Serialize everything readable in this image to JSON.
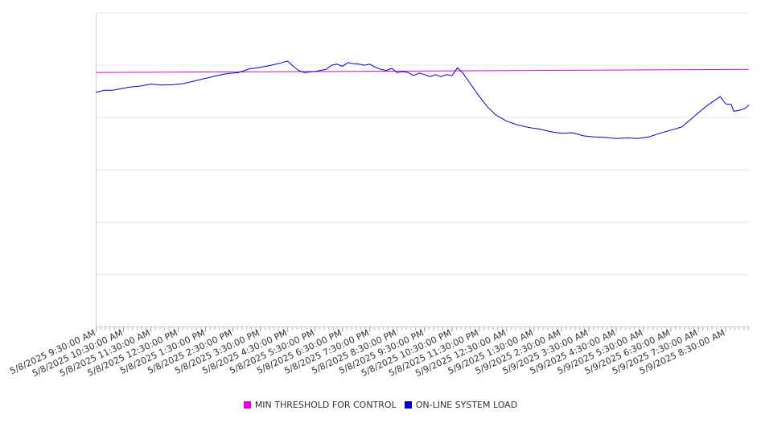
{
  "chart_data": {
    "type": "line",
    "title": "",
    "xlabel": "",
    "ylabel": "",
    "ylim": [
      0,
      6
    ],
    "grid": true,
    "legend_position": "bottom",
    "x_tick_labels": [
      "5/8/2025 9:30:00 AM",
      "5/8/2025 10:30:00 AM",
      "5/8/2025 11:30:00 AM",
      "5/8/2025 12:30:00 PM",
      "5/8/2025 1:30:00 PM",
      "5/8/2025 2:30:00 PM",
      "5/8/2025 3:30:00 PM",
      "5/8/2025 4:30:00 PM",
      "5/8/2025 5:30:00 PM",
      "5/8/2025 6:30:00 PM",
      "5/8/2025 7:30:00 PM",
      "5/8/2025 8:30:00 PM",
      "5/8/2025 9:30:00 PM",
      "5/8/2025 10:30:00 PM",
      "5/8/2025 11:30:00 PM",
      "5/9/2025 12:30:00 AM",
      "5/9/2025 1:30:00 AM",
      "5/9/2025 2:30:00 AM",
      "5/9/2025 3:30:00 AM",
      "5/9/2025 4:30:00 AM",
      "5/9/2025 5:30:00 AM",
      "5/9/2025 6:30:00 AM",
      "5/9/2025 7:30:00 AM",
      "5/9/2025 8:30:00 AM"
    ],
    "series": [
      {
        "name": "MIN THRESHOLD FOR CONTROL",
        "color": "#e000e0",
        "points": [
          [
            0,
            4.86
          ],
          [
            23.85,
            4.92
          ]
        ]
      },
      {
        "name": "ON-LINE SYSTEM LOAD",
        "color": "#0000cc",
        "points": [
          [
            0,
            4.48
          ],
          [
            0.3,
            4.52
          ],
          [
            0.6,
            4.52
          ],
          [
            0.9,
            4.55
          ],
          [
            1.2,
            4.58
          ],
          [
            1.6,
            4.6
          ],
          [
            2.0,
            4.64
          ],
          [
            2.4,
            4.62
          ],
          [
            2.8,
            4.63
          ],
          [
            3.2,
            4.65
          ],
          [
            3.6,
            4.7
          ],
          [
            4.0,
            4.75
          ],
          [
            4.4,
            4.8
          ],
          [
            4.8,
            4.84
          ],
          [
            5.2,
            4.86
          ],
          [
            5.6,
            4.93
          ],
          [
            6.0,
            4.96
          ],
          [
            6.4,
            5.0
          ],
          [
            6.8,
            5.05
          ],
          [
            7.0,
            5.08
          ],
          [
            7.2,
            4.98
          ],
          [
            7.4,
            4.9
          ],
          [
            7.6,
            4.86
          ],
          [
            8.0,
            4.88
          ],
          [
            8.4,
            4.92
          ],
          [
            8.6,
            5.0
          ],
          [
            8.8,
            5.02
          ],
          [
            9.0,
            4.98
          ],
          [
            9.2,
            5.05
          ],
          [
            9.4,
            5.03
          ],
          [
            9.6,
            5.02
          ],
          [
            9.8,
            5.0
          ],
          [
            10.0,
            5.02
          ],
          [
            10.2,
            4.96
          ],
          [
            10.4,
            4.92
          ],
          [
            10.6,
            4.9
          ],
          [
            10.8,
            4.94
          ],
          [
            11.0,
            4.86
          ],
          [
            11.2,
            4.88
          ],
          [
            11.4,
            4.86
          ],
          [
            11.6,
            4.8
          ],
          [
            11.8,
            4.85
          ],
          [
            12.0,
            4.82
          ],
          [
            12.2,
            4.78
          ],
          [
            12.4,
            4.82
          ],
          [
            12.6,
            4.78
          ],
          [
            12.8,
            4.82
          ],
          [
            13.0,
            4.8
          ],
          [
            13.2,
            4.95
          ],
          [
            13.4,
            4.85
          ],
          [
            13.6,
            4.7
          ],
          [
            13.8,
            4.55
          ],
          [
            14.0,
            4.4
          ],
          [
            14.3,
            4.2
          ],
          [
            14.6,
            4.05
          ],
          [
            15.0,
            3.93
          ],
          [
            15.4,
            3.86
          ],
          [
            15.8,
            3.81
          ],
          [
            16.2,
            3.78
          ],
          [
            16.6,
            3.73
          ],
          [
            17.0,
            3.7
          ],
          [
            17.4,
            3.71
          ],
          [
            17.8,
            3.65
          ],
          [
            18.2,
            3.63
          ],
          [
            18.6,
            3.62
          ],
          [
            19.0,
            3.6
          ],
          [
            19.4,
            3.61
          ],
          [
            19.8,
            3.6
          ],
          [
            20.2,
            3.63
          ],
          [
            20.6,
            3.7
          ],
          [
            21.0,
            3.76
          ],
          [
            21.4,
            3.82
          ],
          [
            21.8,
            4.0
          ],
          [
            22.2,
            4.18
          ],
          [
            22.6,
            4.33
          ],
          [
            22.8,
            4.4
          ],
          [
            23.0,
            4.26
          ],
          [
            23.2,
            4.25
          ],
          [
            23.3,
            4.12
          ],
          [
            23.5,
            4.14
          ],
          [
            23.7,
            4.17
          ],
          [
            23.85,
            4.24
          ]
        ]
      }
    ]
  }
}
